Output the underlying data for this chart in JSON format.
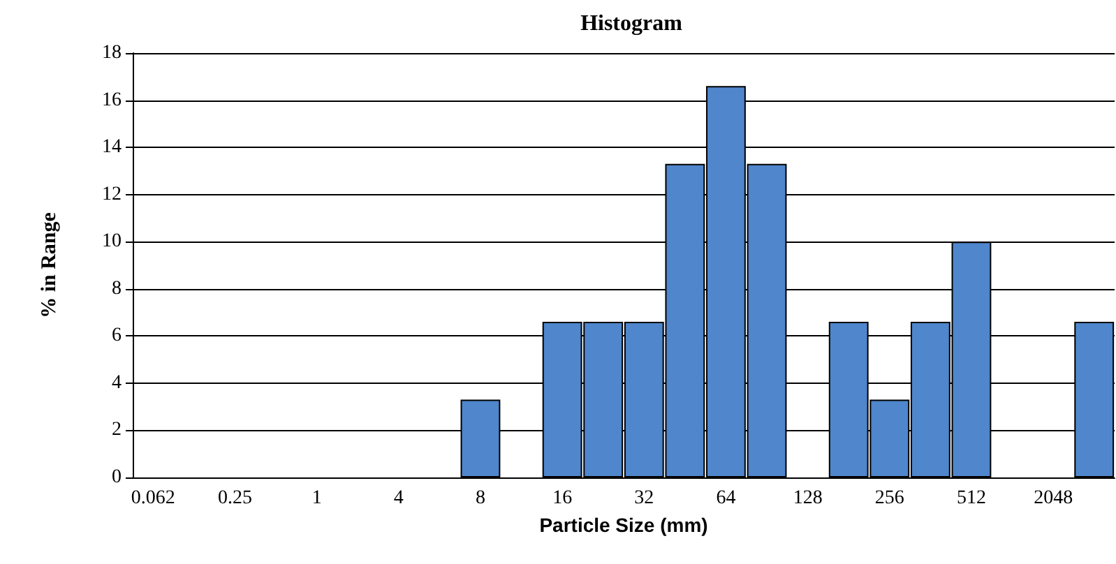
{
  "chart_data": {
    "type": "bar",
    "title": "Histogram",
    "xlabel": "Particle Size (mm)",
    "ylabel": "% in Range",
    "categories": [
      "0.062",
      null,
      "0.25",
      null,
      "1",
      null,
      "4",
      null,
      "8",
      null,
      "16",
      null,
      "32",
      null,
      "64",
      null,
      "128",
      null,
      "256",
      null,
      "512",
      null,
      "2048",
      null
    ],
    "values": [
      0,
      0,
      0,
      0,
      0,
      0,
      0,
      0,
      3.3,
      0,
      6.6,
      6.6,
      6.6,
      13.3,
      16.6,
      13.3,
      0,
      6.6,
      3.3,
      6.6,
      10,
      0,
      0,
      6.6
    ],
    "color": "#4f86cc",
    "ylim": [
      0,
      18
    ],
    "yticks": [
      0,
      2,
      4,
      6,
      8,
      10,
      12,
      14,
      16,
      18
    ],
    "grid": "y"
  }
}
